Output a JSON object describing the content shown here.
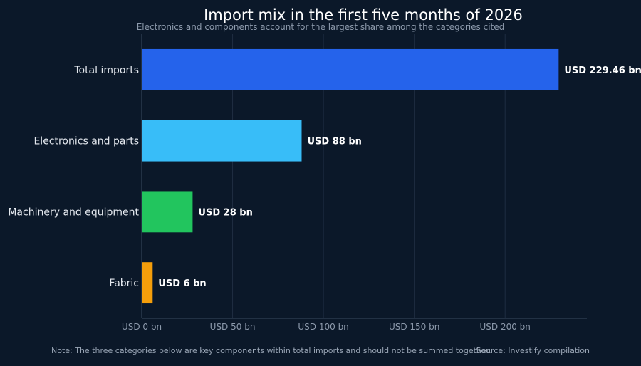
{
  "chart_data": {
    "type": "bar",
    "orientation": "horizontal",
    "title": "Import mix in the first five months of 2026",
    "subtitle": "Electronics and components account for the largest share among the categories cited",
    "categories": [
      "Total imports",
      "Electronics and parts",
      "Machinery and equipment",
      "Fabric"
    ],
    "values": [
      229.46,
      88,
      28,
      6
    ],
    "data_labels": [
      "USD 229.46 bn",
      "USD 88 bn",
      "USD 28 bn",
      "USD 6 bn"
    ],
    "colors": [
      "#2563eb",
      "#38bdf8",
      "#22c55e",
      "#f59e0b"
    ],
    "x_ticks": [
      0,
      50,
      100,
      150,
      200
    ],
    "x_tick_labels": [
      "USD 0 bn",
      "USD 50 bn",
      "USD 100 bn",
      "USD 150 bn",
      "USD 200 bn"
    ],
    "xlim": [
      0,
      245
    ],
    "xlabel": "",
    "ylabel": "",
    "grid": true,
    "legend": "none"
  },
  "footer": {
    "note": "Note: The three categories below are key components within total imports and should not be summed together.",
    "source": "Source: Investify compilation"
  },
  "style": {
    "background": "#0b1829",
    "grid_color": "#1f2d42",
    "axis_color": "#3a4a60",
    "category_label_color": "#e5e9ef",
    "tick_label_color": "#8d9aac",
    "data_label_color": "#ffffff"
  }
}
